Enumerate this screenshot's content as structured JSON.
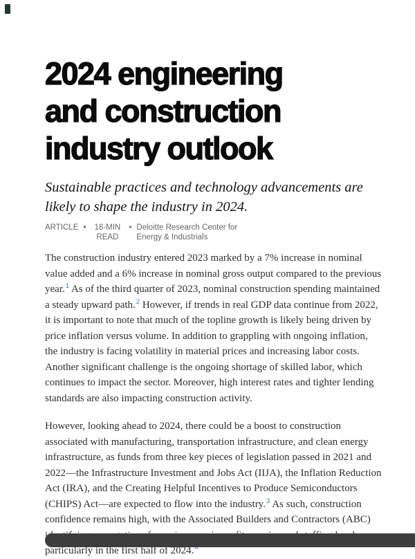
{
  "article": {
    "title": "2024 engineering and construction industry outlook",
    "subtitle": "Sustainable practices and technology advancements are likely to shape the industry in 2024.",
    "meta": {
      "type": "ARTICLE",
      "separator": "•",
      "read_time": "18-MIN READ",
      "source": "Deloitte Research Center for Energy & Industrials"
    },
    "paragraphs": [
      {
        "segments": [
          {
            "t": "The construction industry entered 2023 marked by a 7% increase in nominal value added and a 6% increase in nominal gross output compared to the previous year."
          },
          {
            "t": "1",
            "sup": true
          },
          {
            "t": " As of the third quarter of 2023, nominal construction spending maintained a steady upward path."
          },
          {
            "t": "2",
            "sup": true
          },
          {
            "t": " However, if trends in real GDP data continue from 2022, it is important to note that much of the topline growth is likely being driven by price inflation versus volume. In addition to grappling with ongoing inflation, the industry is facing volatility in material prices and increasing labor costs. Another significant challenge is the ongoing shortage of skilled labor, which continues to impact the sector. Moreover, high interest rates and tighter lending standards are also impacting construction activity."
          }
        ]
      },
      {
        "segments": [
          {
            "t": "However, looking ahead to 2024, there could be a boost to construction associated with manufacturing, transportation infrastructure, and clean energy infrastructure, as funds from three key pieces of legislation passed in 2021 and 2022—the Infrastructure Investment and Jobs Act (IIJA), the Inflation Reduction Act (IRA), and the Creating Helpful Incentives to Produce Semiconductors (CHIPS) Act—are expected to flow into the industry."
          },
          {
            "t": "3",
            "sup": true
          },
          {
            "t": " As such, construction confidence remains high, with the Associated Builders and Contractors (ABC) identifying expectations for an increase in profit margins and staffing levels, particularly in the first half of 2024."
          },
          {
            "t": "4",
            "sup": true
          }
        ]
      }
    ]
  },
  "colors": {
    "heading_text": "#0b0b0b",
    "body_text": "#2f2f2f",
    "meta_text": "#63666a",
    "footnote_link": "#4a78b6",
    "bottom_bar": "#3d3d3d",
    "corner_mark": "#1e3a2f"
  }
}
